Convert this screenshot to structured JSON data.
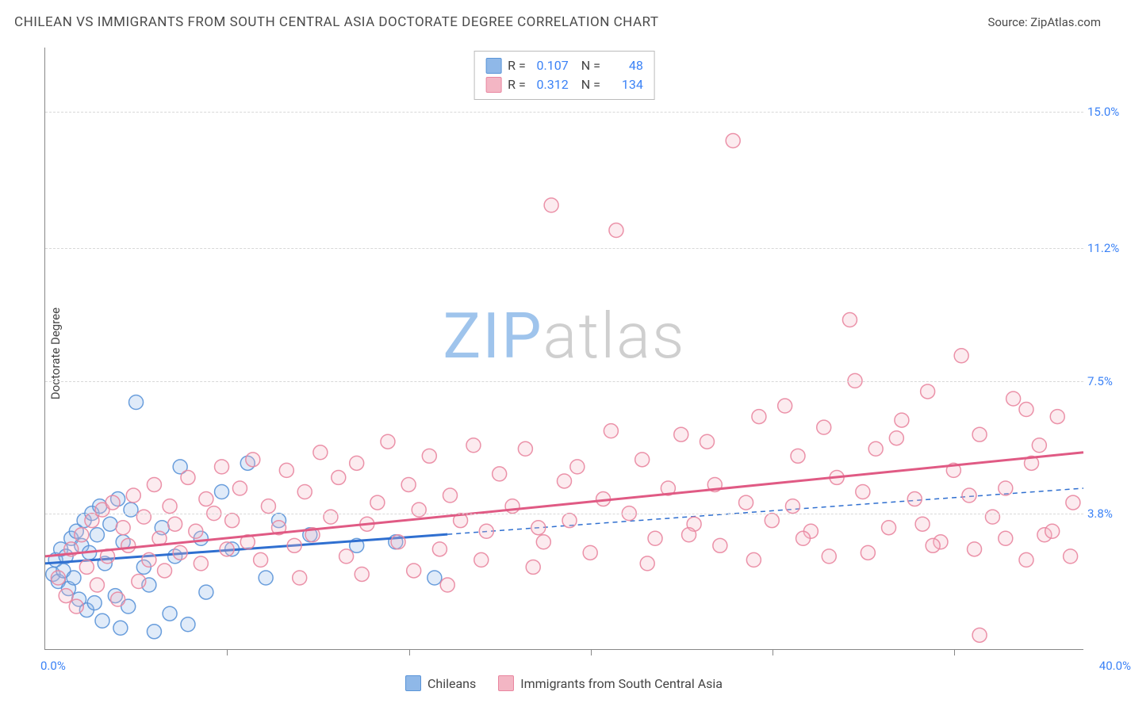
{
  "header": {
    "title": "CHILEAN VS IMMIGRANTS FROM SOUTH CENTRAL ASIA DOCTORATE DEGREE CORRELATION CHART",
    "source": "Source: ZipAtlas.com"
  },
  "ylabel": "Doctorate Degree",
  "watermark": {
    "part1": "ZIP",
    "part2": "atlas",
    "color1": "#9fc4ec",
    "color2": "#cfcfcf"
  },
  "chart": {
    "type": "scatter",
    "xlim": [
      0,
      40
    ],
    "ylim": [
      0,
      16.8
    ],
    "xlim_labels": [
      "0.0%",
      "40.0%"
    ],
    "ytick_values": [
      3.8,
      7.5,
      11.2,
      15.0
    ],
    "ytick_labels": [
      "3.8%",
      "7.5%",
      "11.2%",
      "15.0%"
    ],
    "xtick_values": [
      7,
      14,
      21,
      28,
      35
    ],
    "background_color": "#ffffff",
    "grid_color": "#d8d8d8",
    "axis_color": "#888888",
    "marker_radius": 9,
    "marker_fill_opacity": 0.28,
    "marker_stroke_opacity": 0.9,
    "series": [
      {
        "name": "Chileans",
        "color_fill": "#8fb8e8",
        "color_stroke": "#5a94d8",
        "trend_color": "#2f6fd0",
        "trend_width": 3,
        "trend_solid_xmax": 15.5,
        "trend": {
          "x1": 0,
          "y1": 2.4,
          "x2": 40,
          "y2": 4.5
        },
        "R": "0.107",
        "N": "48",
        "points": [
          [
            0.3,
            2.1
          ],
          [
            0.4,
            2.5
          ],
          [
            0.5,
            1.9
          ],
          [
            0.6,
            2.8
          ],
          [
            0.7,
            2.2
          ],
          [
            0.8,
            2.6
          ],
          [
            0.9,
            1.7
          ],
          [
            1.0,
            3.1
          ],
          [
            1.1,
            2.0
          ],
          [
            1.2,
            3.3
          ],
          [
            1.3,
            1.4
          ],
          [
            1.4,
            2.9
          ],
          [
            1.5,
            3.6
          ],
          [
            1.6,
            1.1
          ],
          [
            1.7,
            2.7
          ],
          [
            1.8,
            3.8
          ],
          [
            1.9,
            1.3
          ],
          [
            2.0,
            3.2
          ],
          [
            2.1,
            4.0
          ],
          [
            2.2,
            0.8
          ],
          [
            2.3,
            2.4
          ],
          [
            2.5,
            3.5
          ],
          [
            2.7,
            1.5
          ],
          [
            2.8,
            4.2
          ],
          [
            2.9,
            0.6
          ],
          [
            3.0,
            3.0
          ],
          [
            3.2,
            1.2
          ],
          [
            3.3,
            3.9
          ],
          [
            3.5,
            6.9
          ],
          [
            3.8,
            2.3
          ],
          [
            4.0,
            1.8
          ],
          [
            4.2,
            0.5
          ],
          [
            4.5,
            3.4
          ],
          [
            4.8,
            1.0
          ],
          [
            5.0,
            2.6
          ],
          [
            5.2,
            5.1
          ],
          [
            5.5,
            0.7
          ],
          [
            6.0,
            3.1
          ],
          [
            6.2,
            1.6
          ],
          [
            6.8,
            4.4
          ],
          [
            7.2,
            2.8
          ],
          [
            7.8,
            5.2
          ],
          [
            8.5,
            2.0
          ],
          [
            9.0,
            3.6
          ],
          [
            10.2,
            3.2
          ],
          [
            12.0,
            2.9
          ],
          [
            13.5,
            3.0
          ],
          [
            15.0,
            2.0
          ]
        ]
      },
      {
        "name": "Immigrants from South Central Asia",
        "color_fill": "#f3b6c4",
        "color_stroke": "#e986a0",
        "trend_color": "#e05a84",
        "trend_width": 3,
        "trend_solid_xmax": 40,
        "trend": {
          "x1": 0,
          "y1": 2.6,
          "x2": 40,
          "y2": 5.5
        },
        "R": "0.312",
        "N": "134",
        "points": [
          [
            0.5,
            2.0
          ],
          [
            0.8,
            1.5
          ],
          [
            1.0,
            2.8
          ],
          [
            1.2,
            1.2
          ],
          [
            1.4,
            3.2
          ],
          [
            1.6,
            2.3
          ],
          [
            1.8,
            3.6
          ],
          [
            2.0,
            1.8
          ],
          [
            2.2,
            3.9
          ],
          [
            2.4,
            2.6
          ],
          [
            2.6,
            4.1
          ],
          [
            2.8,
            1.4
          ],
          [
            3.0,
            3.4
          ],
          [
            3.2,
            2.9
          ],
          [
            3.4,
            4.3
          ],
          [
            3.6,
            1.9
          ],
          [
            3.8,
            3.7
          ],
          [
            4.0,
            2.5
          ],
          [
            4.2,
            4.6
          ],
          [
            4.4,
            3.1
          ],
          [
            4.6,
            2.2
          ],
          [
            4.8,
            4.0
          ],
          [
            5.0,
            3.5
          ],
          [
            5.2,
            2.7
          ],
          [
            5.5,
            4.8
          ],
          [
            5.8,
            3.3
          ],
          [
            6.0,
            2.4
          ],
          [
            6.2,
            4.2
          ],
          [
            6.5,
            3.8
          ],
          [
            6.8,
            5.1
          ],
          [
            7.0,
            2.8
          ],
          [
            7.2,
            3.6
          ],
          [
            7.5,
            4.5
          ],
          [
            7.8,
            3.0
          ],
          [
            8.0,
            5.3
          ],
          [
            8.3,
            2.5
          ],
          [
            8.6,
            4.0
          ],
          [
            9.0,
            3.4
          ],
          [
            9.3,
            5.0
          ],
          [
            9.6,
            2.9
          ],
          [
            10.0,
            4.4
          ],
          [
            10.3,
            3.2
          ],
          [
            10.6,
            5.5
          ],
          [
            11.0,
            3.7
          ],
          [
            11.3,
            4.8
          ],
          [
            11.6,
            2.6
          ],
          [
            12.0,
            5.2
          ],
          [
            12.4,
            3.5
          ],
          [
            12.8,
            4.1
          ],
          [
            13.2,
            5.8
          ],
          [
            13.6,
            3.0
          ],
          [
            14.0,
            4.6
          ],
          [
            14.4,
            3.9
          ],
          [
            14.8,
            5.4
          ],
          [
            15.2,
            2.8
          ],
          [
            15.6,
            4.3
          ],
          [
            16.0,
            3.6
          ],
          [
            16.5,
            5.7
          ],
          [
            17.0,
            3.3
          ],
          [
            17.5,
            4.9
          ],
          [
            18.0,
            4.0
          ],
          [
            18.5,
            5.6
          ],
          [
            19.0,
            3.4
          ],
          [
            19.5,
            12.4
          ],
          [
            20.0,
            4.7
          ],
          [
            20.5,
            5.1
          ],
          [
            21.0,
            2.7
          ],
          [
            21.5,
            4.2
          ],
          [
            22.0,
            11.7
          ],
          [
            22.5,
            3.8
          ],
          [
            23.0,
            5.3
          ],
          [
            23.5,
            3.1
          ],
          [
            24.0,
            4.5
          ],
          [
            24.5,
            6.0
          ],
          [
            25.0,
            3.5
          ],
          [
            25.5,
            5.8
          ],
          [
            26.0,
            2.9
          ],
          [
            26.5,
            14.2
          ],
          [
            27.0,
            4.1
          ],
          [
            27.5,
            6.5
          ],
          [
            28.0,
            3.6
          ],
          [
            28.5,
            6.8
          ],
          [
            29.0,
            5.4
          ],
          [
            29.5,
            3.3
          ],
          [
            30.0,
            6.2
          ],
          [
            30.5,
            4.8
          ],
          [
            31.0,
            9.2
          ],
          [
            31.2,
            7.5
          ],
          [
            31.7,
            2.7
          ],
          [
            32.0,
            5.6
          ],
          [
            32.5,
            3.4
          ],
          [
            33.0,
            6.4
          ],
          [
            33.5,
            4.2
          ],
          [
            34.0,
            7.2
          ],
          [
            34.5,
            3.0
          ],
          [
            35.0,
            5.0
          ],
          [
            35.3,
            8.2
          ],
          [
            35.8,
            2.8
          ],
          [
            36.0,
            6.0
          ],
          [
            36.5,
            3.7
          ],
          [
            37.0,
            4.5
          ],
          [
            37.3,
            7.0
          ],
          [
            37.8,
            2.5
          ],
          [
            37.8,
            6.7
          ],
          [
            38.0,
            5.2
          ],
          [
            38.5,
            3.2
          ],
          [
            39.0,
            6.5
          ],
          [
            39.5,
            2.6
          ],
          [
            36.0,
            0.4
          ],
          [
            18.8,
            2.3
          ],
          [
            21.8,
            6.1
          ],
          [
            23.2,
            2.4
          ],
          [
            25.8,
            4.6
          ],
          [
            27.3,
            2.5
          ],
          [
            28.8,
            4.0
          ],
          [
            30.2,
            2.6
          ],
          [
            31.5,
            4.4
          ],
          [
            32.8,
            5.9
          ],
          [
            34.2,
            2.9
          ],
          [
            35.6,
            4.3
          ],
          [
            37.0,
            3.1
          ],
          [
            38.3,
            5.7
          ],
          [
            39.6,
            4.1
          ],
          [
            14.2,
            2.2
          ],
          [
            16.8,
            2.5
          ],
          [
            19.2,
            3.0
          ],
          [
            24.8,
            3.2
          ],
          [
            29.2,
            3.1
          ],
          [
            33.8,
            3.5
          ],
          [
            38.8,
            3.3
          ],
          [
            9.8,
            2.0
          ],
          [
            12.2,
            2.1
          ],
          [
            15.5,
            1.8
          ],
          [
            20.2,
            3.6
          ]
        ]
      }
    ]
  },
  "stats_box": {
    "rows": [
      {
        "swatch_fill": "#8fb8e8",
        "swatch_stroke": "#5a94d8",
        "r_label": "R =",
        "r_val": "0.107",
        "n_label": "N =",
        "n_val": "48"
      },
      {
        "swatch_fill": "#f3b6c4",
        "swatch_stroke": "#e986a0",
        "r_label": "R =",
        "r_val": "0.312",
        "n_label": "N =",
        "n_val": "134"
      }
    ]
  },
  "bottom_legend": [
    {
      "swatch_fill": "#8fb8e8",
      "swatch_stroke": "#5a94d8",
      "label": "Chileans"
    },
    {
      "swatch_fill": "#f3b6c4",
      "swatch_stroke": "#e986a0",
      "label": "Immigrants from South Central Asia"
    }
  ]
}
